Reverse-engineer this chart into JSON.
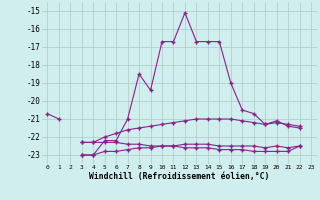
{
  "xlabel": "Windchill (Refroidissement éolien,°C)",
  "background_color": "#d0eeee",
  "grid_color": "#b0c8c8",
  "line_color": "#882288",
  "x": [
    0,
    1,
    2,
    3,
    4,
    5,
    6,
    7,
    8,
    9,
    10,
    11,
    12,
    13,
    14,
    15,
    16,
    17,
    18,
    19,
    20,
    21,
    22,
    23
  ],
  "line1": [
    -20.7,
    -21.0,
    null,
    -23.0,
    -23.0,
    -22.2,
    -22.2,
    -21.0,
    -18.5,
    -19.4,
    -16.7,
    -16.7,
    -15.1,
    -16.7,
    -16.7,
    -16.7,
    -19.0,
    -20.5,
    -20.7,
    -21.3,
    -21.1,
    -21.4,
    -21.5,
    null
  ],
  "line2": [
    null,
    null,
    null,
    -22.3,
    -22.3,
    -22.3,
    -22.3,
    -22.4,
    -22.4,
    -22.5,
    -22.5,
    -22.5,
    -22.6,
    -22.6,
    -22.6,
    -22.7,
    -22.7,
    -22.7,
    -22.8,
    -22.8,
    -22.8,
    -22.8,
    -22.5,
    null
  ],
  "line3": [
    null,
    null,
    null,
    -22.3,
    -22.3,
    -22.0,
    -21.8,
    -21.6,
    -21.5,
    -21.4,
    -21.3,
    -21.2,
    -21.1,
    -21.0,
    -21.0,
    -21.0,
    -21.0,
    -21.1,
    -21.2,
    -21.3,
    -21.2,
    -21.3,
    -21.4,
    null
  ],
  "line4": [
    null,
    null,
    null,
    -23.0,
    -23.0,
    -22.8,
    -22.8,
    -22.7,
    -22.6,
    -22.6,
    -22.5,
    -22.5,
    -22.4,
    -22.4,
    -22.4,
    -22.5,
    -22.5,
    -22.5,
    -22.5,
    -22.6,
    -22.5,
    -22.6,
    -22.5,
    null
  ],
  "ylim": [
    -23.5,
    -14.5
  ],
  "xlim": [
    -0.5,
    23.5
  ],
  "yticks": [
    -23,
    -22,
    -21,
    -20,
    -19,
    -18,
    -17,
    -16,
    -15
  ],
  "xticks": [
    0,
    1,
    2,
    3,
    4,
    5,
    6,
    7,
    8,
    9,
    10,
    11,
    12,
    13,
    14,
    15,
    16,
    17,
    18,
    19,
    20,
    21,
    22,
    23
  ]
}
